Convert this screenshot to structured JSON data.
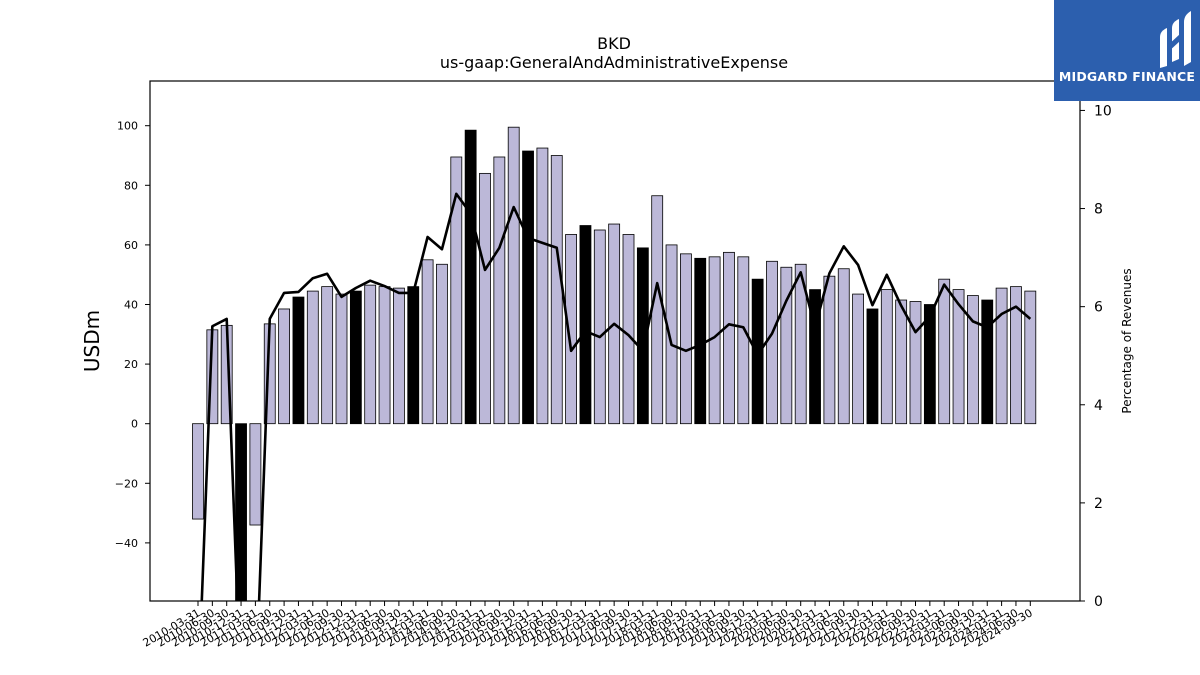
{
  "logo": {
    "text": "MIDGARD FINANCE"
  },
  "chart_data": {
    "type": "bar",
    "title": "BKD",
    "subtitle": "us-gaap:GeneralAndAdministrativeExpense",
    "ylabel": "USDm",
    "y2label": "Percentage of Revenues",
    "ylim": [
      -59.5,
      115
    ],
    "y2lim": [
      0,
      10.6
    ],
    "yticks": [
      -40,
      -20,
      0,
      20,
      40,
      60,
      80,
      100
    ],
    "y2ticks": [
      0,
      2,
      4,
      6,
      8,
      10
    ],
    "colors": {
      "bar": "#bcb8d8",
      "bar_q4": "#000000",
      "line": "#000000"
    },
    "categories": [
      "2010-03-31",
      "2010-06-30",
      "2010-09-30",
      "2010-12-31",
      "2011-03-31",
      "2011-06-30",
      "2011-09-30",
      "2011-12-31",
      "2012-03-31",
      "2012-06-30",
      "2012-09-30",
      "2012-12-31",
      "2013-03-31",
      "2013-06-30",
      "2013-09-30",
      "2013-12-31",
      "2014-03-31",
      "2014-06-30",
      "2014-09-30",
      "2014-12-31",
      "2015-03-31",
      "2015-06-30",
      "2015-09-30",
      "2015-12-31",
      "2016-03-31",
      "2016-06-30",
      "2016-09-30",
      "2016-12-31",
      "2017-03-31",
      "2017-06-30",
      "2017-09-30",
      "2017-12-31",
      "2018-03-31",
      "2018-06-30",
      "2018-09-30",
      "2018-12-31",
      "2019-03-31",
      "2019-06-30",
      "2019-09-30",
      "2019-12-31",
      "2020-03-31",
      "2020-06-30",
      "2020-09-30",
      "2020-12-31",
      "2021-03-31",
      "2021-06-30",
      "2021-09-30",
      "2021-12-31",
      "2022-03-31",
      "2022-06-30",
      "2022-09-30",
      "2022-12-31",
      "2023-03-31",
      "2023-06-30",
      "2023-09-30",
      "2023-12-31",
      "2024-03-31",
      "2024-06-30",
      "2024-09-30"
    ],
    "series": [
      {
        "type": "bar",
        "axis": "left",
        "values": [
          -32,
          31.5,
          33,
          -62,
          -34,
          33.5,
          38.5,
          42.5,
          44.5,
          46,
          43.5,
          44.5,
          46.5,
          46,
          45.5,
          46,
          55,
          53.5,
          89.5,
          98.5,
          84,
          89.5,
          99.5,
          91.5,
          92.5,
          90,
          63.5,
          66.5,
          65,
          67,
          63.5,
          59,
          76.5,
          60,
          57,
          55.5,
          56,
          57.5,
          56,
          48.5,
          54.5,
          52.5,
          53.5,
          45,
          49.5,
          52,
          43.5,
          38.5,
          45,
          41.5,
          41,
          40,
          48.5,
          45,
          43,
          41.5,
          45.5,
          46,
          44.5
        ]
      },
      {
        "type": "line",
        "axis": "right",
        "values": [
          -2,
          5.6,
          5.75,
          -2,
          -2,
          5.75,
          6.28,
          6.3,
          6.58,
          6.67,
          6.2,
          6.38,
          6.53,
          6.42,
          6.28,
          6.28,
          7.42,
          7.17,
          8.3,
          7.9,
          6.75,
          7.2,
          8.03,
          7.4,
          7.3,
          7.2,
          5.1,
          5.5,
          5.38,
          5.65,
          5.42,
          5.1,
          6.48,
          5.22,
          5.1,
          5.22,
          5.38,
          5.64,
          5.58,
          5.02,
          5.45,
          6.12,
          6.7,
          5.58,
          6.68,
          7.23,
          6.85,
          6.03,
          6.65,
          6.02,
          5.48,
          5.8,
          6.45,
          6.05,
          5.7,
          5.58,
          5.85,
          6.0,
          5.75
        ]
      }
    ]
  }
}
